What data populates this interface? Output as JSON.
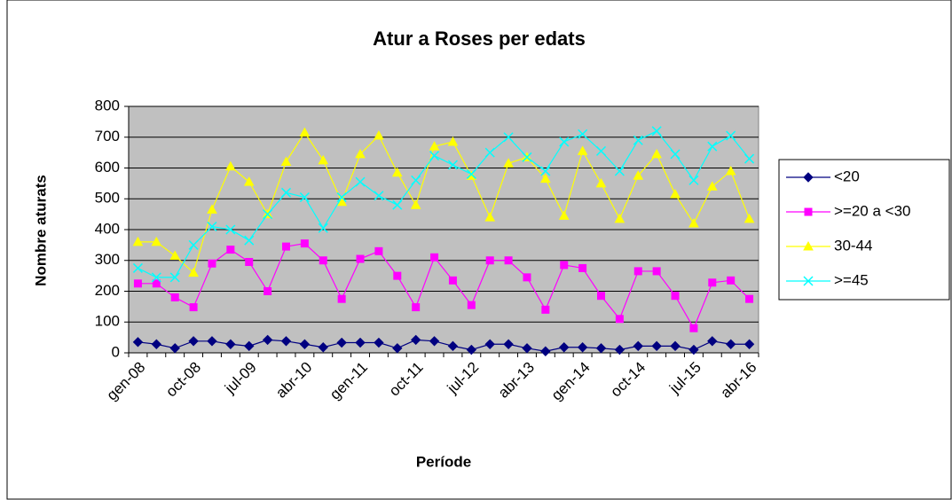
{
  "chart_data": {
    "type": "line",
    "title": "Atur a Roses per edats",
    "x_label": "Període",
    "y_label": "Nombre aturats",
    "categories": [
      "gen-08",
      null,
      null,
      "oct-08",
      null,
      null,
      "jul-09",
      null,
      null,
      "abr-10",
      null,
      null,
      "gen-11",
      null,
      null,
      "oct-11",
      null,
      null,
      "jul-12",
      null,
      null,
      "abr-13",
      null,
      null,
      "gen-14",
      null,
      null,
      "oct-14",
      null,
      null,
      "jul-15",
      null,
      null,
      "abr-16"
    ],
    "series": [
      {
        "name": "<20",
        "color": "#000080",
        "marker": "diamond",
        "values": [
          35,
          28,
          15,
          38,
          38,
          28,
          22,
          42,
          38,
          28,
          18,
          33,
          33,
          33,
          15,
          42,
          38,
          22,
          10,
          28,
          28,
          15,
          5,
          18,
          18,
          15,
          10,
          22,
          22,
          22,
          10,
          38,
          28,
          28
        ]
      },
      {
        "name": ">=20 a <30",
        "color": "#ff00ff",
        "marker": "square",
        "values": [
          225,
          225,
          180,
          148,
          290,
          335,
          295,
          200,
          345,
          355,
          300,
          175,
          305,
          330,
          250,
          148,
          310,
          235,
          155,
          300,
          300,
          245,
          140,
          285,
          275,
          185,
          110,
          265,
          265,
          185,
          80,
          228,
          235,
          175
        ]
      },
      {
        "name": "30-44",
        "color": "#ffff00",
        "marker": "triangle",
        "values": [
          360,
          360,
          315,
          260,
          465,
          605,
          555,
          450,
          620,
          715,
          625,
          490,
          645,
          705,
          585,
          480,
          670,
          685,
          575,
          440,
          615,
          635,
          565,
          445,
          655,
          550,
          435,
          575,
          645,
          515,
          420,
          540,
          590,
          435
        ]
      },
      {
        "name": ">=45",
        "color": "#00ffff",
        "marker": "x",
        "values": [
          275,
          245,
          245,
          350,
          410,
          400,
          365,
          450,
          520,
          505,
          405,
          505,
          555,
          510,
          480,
          560,
          640,
          610,
          580,
          650,
          700,
          635,
          590,
          685,
          710,
          655,
          590,
          690,
          720,
          645,
          560,
          670,
          705,
          630
        ]
      }
    ],
    "ylim": [
      0,
      800
    ],
    "yticks": [
      0,
      100,
      200,
      300,
      400,
      500,
      600,
      700,
      800
    ],
    "grid": true,
    "legend": "right",
    "plot_background": "#c0c0c0"
  }
}
